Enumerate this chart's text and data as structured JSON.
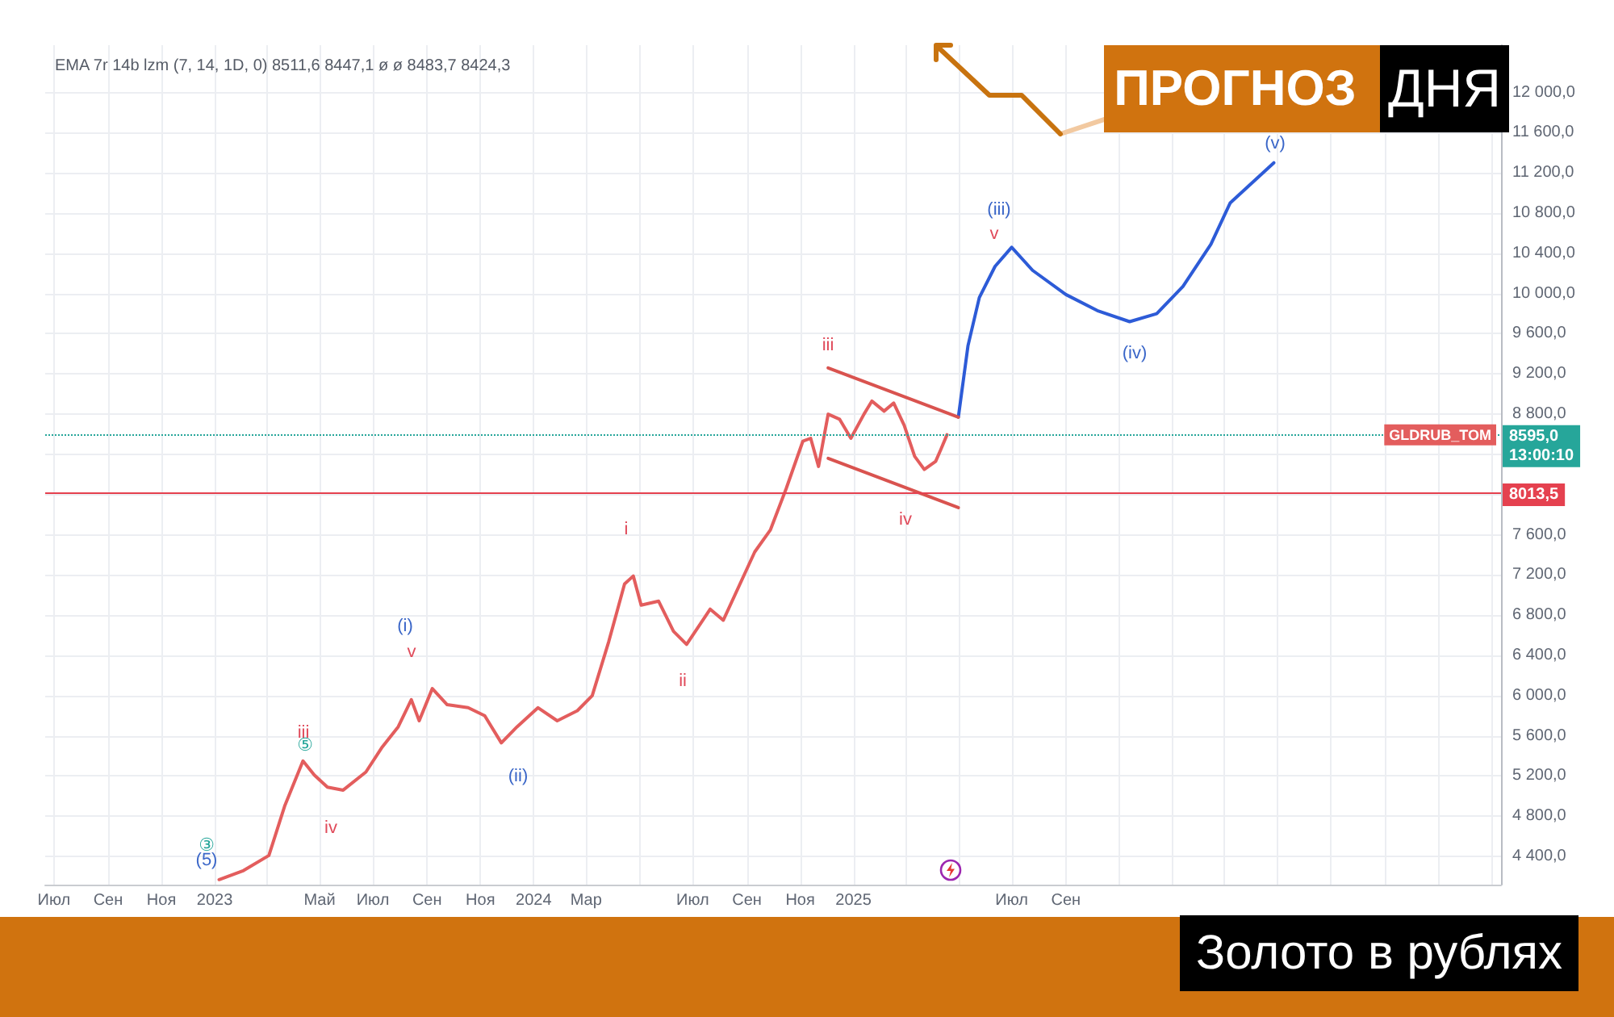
{
  "chart_data": {
    "type": "line",
    "title": "Золото в рублях",
    "subtitle": "ПРОГНОЗ ДНЯ",
    "xlim": [
      "2022-06-21",
      "2027-01-12"
    ],
    "xticks": [
      {
        "value": "2022-07-01",
        "label": "Июл"
      },
      {
        "value": "2022-09-01",
        "label": "Сен"
      },
      {
        "value": "2022-11-01",
        "label": "Ноя"
      },
      {
        "value": "2023-01-01",
        "label": "2023"
      },
      {
        "value": "2023-03-01",
        "label": null
      },
      {
        "value": "2023-05-01",
        "label": "Май"
      },
      {
        "value": "2023-07-01",
        "label": "Июл"
      },
      {
        "value": "2023-09-01",
        "label": "Сен"
      },
      {
        "value": "2023-11-01",
        "label": "Ноя"
      },
      {
        "value": "2024-01-01",
        "label": "2024"
      },
      {
        "value": "2024-03-01",
        "label": "Мар"
      },
      {
        "value": "2024-05-01",
        "label": null
      },
      {
        "value": "2024-07-01",
        "label": "Июл"
      },
      {
        "value": "2024-09-01",
        "label": "Сен"
      },
      {
        "value": "2024-11-01",
        "label": "Ноя"
      },
      {
        "value": "2025-01-01",
        "label": "2025"
      },
      {
        "value": "2025-03-01",
        "label": null
      },
      {
        "value": "2025-05-01",
        "label": null
      },
      {
        "value": "2025-07-01",
        "label": "Июл"
      },
      {
        "value": "2025-09-01",
        "label": "Сен"
      },
      {
        "value": "2025-11-01",
        "label": null
      },
      {
        "value": "2026-01-01",
        "label": null
      },
      {
        "value": "2026-03-01",
        "label": null
      },
      {
        "value": "2026-05-01",
        "label": null
      },
      {
        "value": "2026-07-01",
        "label": null
      },
      {
        "value": "2026-09-01",
        "label": null
      },
      {
        "value": "2026-11-01",
        "label": null
      },
      {
        "value": "2027-01-01",
        "label": null
      }
    ],
    "ylim": [
      4120,
      12470
    ],
    "yticks": [
      {
        "value": 4400,
        "label": "4 400,0"
      },
      {
        "value": 4800,
        "label": "4 800,0"
      },
      {
        "value": 5200,
        "label": "5 200,0"
      },
      {
        "value": 5600,
        "label": "5 600,0"
      },
      {
        "value": 6000,
        "label": "6 000,0"
      },
      {
        "value": 6400,
        "label": "6 400,0"
      },
      {
        "value": 6800,
        "label": "6 800,0"
      },
      {
        "value": 7200,
        "label": "7 200,0"
      },
      {
        "value": 7600,
        "label": "7 600,0"
      },
      {
        "value": 8000,
        "label": null
      },
      {
        "value": 8400,
        "label": null
      },
      {
        "value": 8800,
        "label": "8 800,0"
      },
      {
        "value": 9200,
        "label": "9 200,0"
      },
      {
        "value": 9600,
        "label": "9 600,0"
      },
      {
        "value": 10000,
        "label": "10 000,0"
      },
      {
        "value": 10400,
        "label": "10 400,0"
      },
      {
        "value": 10800,
        "label": "10 800,0"
      },
      {
        "value": 11200,
        "label": "11 200,0"
      },
      {
        "value": 11600,
        "label": "11 600,0"
      },
      {
        "value": 12000,
        "label": "12 000,0"
      }
    ],
    "grid": true,
    "series": [
      {
        "name": "GLDRUB_TOM",
        "color": "#e35d5d",
        "x": [
          "2023-01-06",
          "2023-02-03",
          "2023-03-04",
          "2023-03-22",
          "2023-04-12",
          "2023-04-25",
          "2023-05-10",
          "2023-05-28",
          "2023-06-23",
          "2023-07-11",
          "2023-07-30",
          "2023-08-14",
          "2023-08-23",
          "2023-09-07",
          "2023-09-24",
          "2023-10-18",
          "2023-11-06",
          "2023-11-25",
          "2023-12-13",
          "2024-01-06",
          "2024-01-28",
          "2024-02-20",
          "2024-03-08",
          "2024-03-27",
          "2024-04-14",
          "2024-04-24",
          "2024-05-03",
          "2024-05-23",
          "2024-06-09",
          "2024-06-24",
          "2024-07-21",
          "2024-08-05",
          "2024-09-10",
          "2024-09-28",
          "2024-10-16",
          "2024-11-04",
          "2024-11-13",
          "2024-11-22",
          "2024-12-03",
          "2024-12-16",
          "2024-12-29",
          "2025-01-13",
          "2025-01-22",
          "2025-02-05",
          "2025-02-16",
          "2025-02-28",
          "2025-03-12",
          "2025-03-23",
          "2025-04-05",
          "2025-04-11",
          "2025-04-18"
        ],
        "values": [
          4170,
          4260,
          4410,
          4900,
          5350,
          5210,
          5090,
          5060,
          5240,
          5480,
          5690,
          5960,
          5750,
          6070,
          5910,
          5880,
          5800,
          5530,
          5690,
          5880,
          5750,
          5850,
          6000,
          6540,
          7110,
          7190,
          6900,
          6940,
          6640,
          6510,
          6860,
          6750,
          7430,
          7650,
          8060,
          8530,
          8560,
          8280,
          8800,
          8750,
          8560,
          8800,
          8930,
          8830,
          8910,
          8690,
          8380,
          8250,
          8330,
          8450,
          8595
        ]
      },
      {
        "color": "#2d5bd7",
        "x": [
          "2025-05-01",
          "2025-05-12",
          "2025-05-25",
          "2025-06-12",
          "2025-07-01",
          "2025-07-25",
          "2025-09-01",
          "2025-10-07",
          "2025-11-13",
          "2025-12-14",
          "2026-01-13",
          "2026-02-14",
          "2026-03-08",
          "2026-04-27"
        ],
        "values": [
          8770,
          9480,
          9960,
          10270,
          10460,
          10230,
          9990,
          9830,
          9720,
          9800,
          10070,
          10490,
          10900,
          11300
        ]
      },
      {
        "color": "#d9534f",
        "x": [
          "2024-12-03",
          "2025-05-01"
        ],
        "values": [
          9260,
          8770
        ]
      },
      {
        "color": "#d9534f",
        "x": [
          "2024-12-03",
          "2025-05-01"
        ],
        "values": [
          8360,
          7870
        ]
      }
    ],
    "ref_lines": [
      {
        "axis": "y",
        "value": 8013.5,
        "label": "8013,5",
        "color": "#e5414f"
      },
      {
        "axis": "y",
        "value": 8595,
        "label": "8595,0\n13:00:10",
        "color": "#26a69a",
        "line_style": "dotted"
      }
    ],
    "annotations": [
      "EMA 7r 14b lzm (7, 14, 1D, 0) 8511,6 8447,1 ø ø 8483,7 8424,3",
      "③",
      "(5)",
      "iii",
      "⑤",
      "iv",
      "(i)",
      "v",
      "(ii)",
      "i",
      "ii",
      "iii",
      "iv",
      "(iii)",
      "v",
      "(iv)",
      "(v)"
    ]
  }
}
